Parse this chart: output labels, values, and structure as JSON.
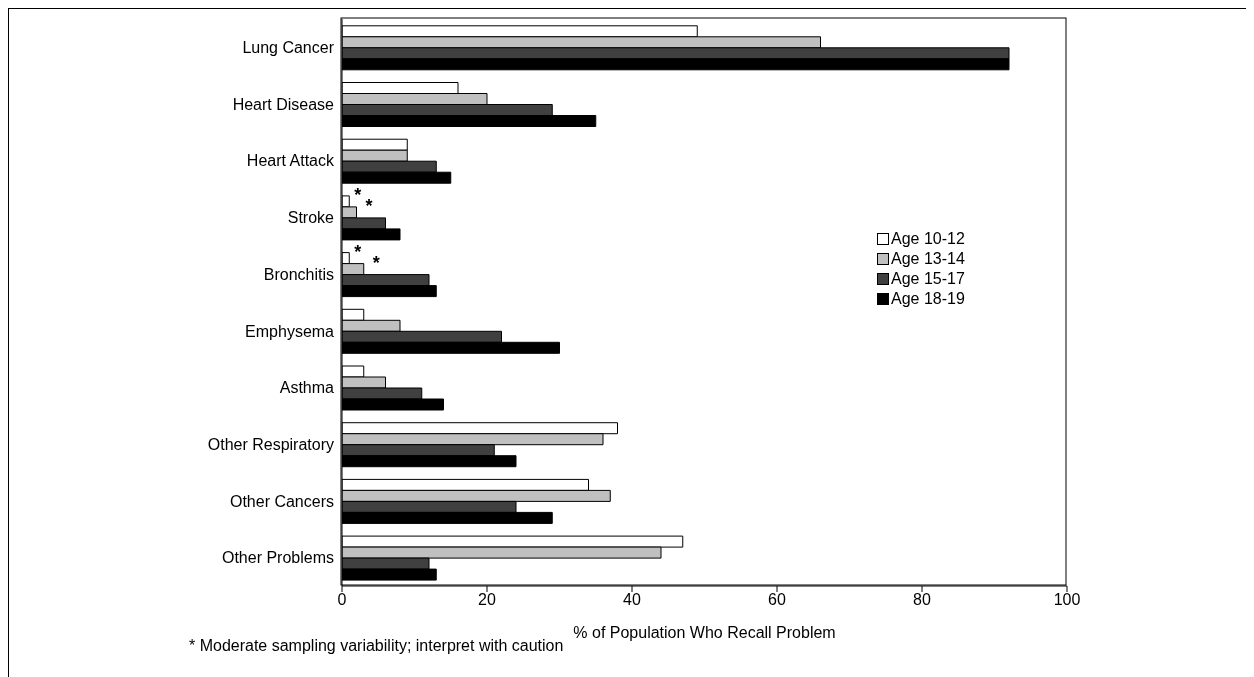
{
  "chart_data": {
    "type": "bar",
    "orientation": "horizontal",
    "xlabel": "% of Population Who Recall Problem",
    "categories": [
      "Lung Cancer",
      "Heart Disease",
      "Heart Attack",
      "Stroke",
      "Bronchitis",
      "Emphysema",
      "Asthma",
      "Other Respiratory",
      "Other Cancers",
      "Other Problems"
    ],
    "series": [
      {
        "name": "Age 10-12",
        "color": "#ffffff",
        "values": [
          49,
          16,
          9,
          1,
          1,
          3,
          3,
          38,
          34,
          47
        ]
      },
      {
        "name": "Age 13-14",
        "color": "#c0c0c0",
        "values": [
          66,
          20,
          9,
          2,
          3,
          8,
          6,
          36,
          37,
          44
        ]
      },
      {
        "name": "Age 15-17",
        "color": "#404040",
        "values": [
          92,
          29,
          13,
          6,
          12,
          22,
          11,
          21,
          24,
          12
        ]
      },
      {
        "name": "Age 18-19",
        "color": "#000000",
        "values": [
          92,
          35,
          15,
          8,
          13,
          30,
          14,
          24,
          29,
          13
        ]
      }
    ],
    "xlim": [
      0,
      100
    ],
    "xticks": [
      0,
      20,
      40,
      60,
      80,
      100
    ],
    "legend": "right",
    "annotations": [
      {
        "text": "*",
        "x": 1,
        "y": "Stroke"
      },
      {
        "text": "*",
        "x": 2,
        "y": "Stroke"
      },
      {
        "text": "*",
        "x": 1,
        "y": "Bronchitis"
      },
      {
        "text": "*",
        "x": 3,
        "y": "Bronchitis"
      },
      "* Moderate sampling variability; interpret with caution"
    ]
  }
}
